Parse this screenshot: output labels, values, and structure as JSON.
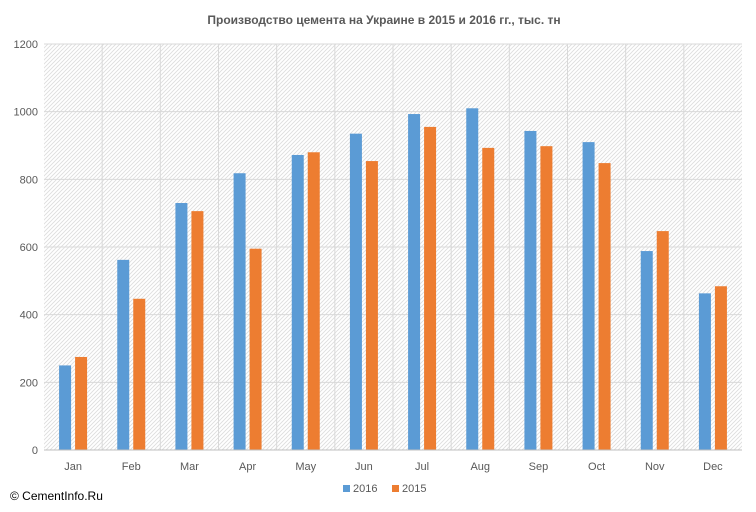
{
  "chart_data": {
    "type": "bar",
    "title": "Производство цемента на Украине в 2015 и 2016 гг., тыс. тн",
    "categories": [
      "Jan",
      "Feb",
      "Mar",
      "Apr",
      "May",
      "Jun",
      "Jul",
      "Aug",
      "Sep",
      "Oct",
      "Nov",
      "Dec"
    ],
    "series": [
      {
        "name": "2016",
        "color": "#5B9BD5",
        "values": [
          250,
          562,
          730,
          818,
          872,
          935,
          993,
          1010,
          943,
          910,
          588,
          463
        ]
      },
      {
        "name": "2015",
        "color": "#ED7D31",
        "values": [
          275,
          447,
          706,
          595,
          880,
          854,
          955,
          893,
          898,
          848,
          647,
          484
        ]
      }
    ],
    "xlabel": "",
    "ylabel": "",
    "ylim": [
      0,
      1200
    ],
    "yticks": [
      0,
      200,
      400,
      600,
      800,
      1000,
      1200
    ],
    "grid": true,
    "legend_position": "bottom"
  },
  "footer": {
    "copyright": "© CementInfo.Ru"
  }
}
